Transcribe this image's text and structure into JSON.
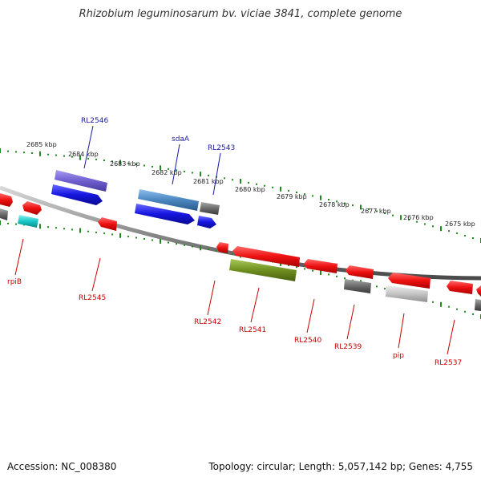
{
  "title": "Rhizobium leguminosarum bv. viciae 3841, complete genome",
  "footer": {
    "accession": "Accession: NC_008380",
    "summary": "Topology: circular; Length: 5,057,142 bp; Genes: 4,755"
  },
  "colors": {
    "backbone": "#8a8a8a",
    "ticks": "#1f8a1f",
    "cds_red": "#ee1111",
    "cds_blue": "#1515e0",
    "purple": "#6f5fd0",
    "steel": "#4a86c0",
    "gray": "#6a6a6a",
    "light_gray": "#c4c4c4",
    "cyan": "#19c8c8",
    "olive": "#6f8f1f",
    "label_blue": "#1a1aa6",
    "label_red": "#cc0000"
  },
  "scale_ticks": [
    {
      "label": "2685 kbp"
    },
    {
      "label": "2684 kbp"
    },
    {
      "label": "2683 kbp"
    },
    {
      "label": "2682 kbp"
    },
    {
      "label": "2681 kbp"
    },
    {
      "label": "2680 kbp"
    },
    {
      "label": "2679 kbp"
    },
    {
      "label": "2678 kbp"
    },
    {
      "label": "2677 kbp"
    },
    {
      "label": "2676 kbp"
    },
    {
      "label": "2675 kbp"
    }
  ],
  "gene_labels_top": [
    {
      "name": "RL2546"
    },
    {
      "name": "sdaA"
    },
    {
      "name": "RL2543"
    }
  ],
  "gene_labels_bottom": [
    {
      "name": "rpiB"
    },
    {
      "name": "RL2545"
    },
    {
      "name": "RL2542"
    },
    {
      "name": "RL2541"
    },
    {
      "name": "RL2540"
    },
    {
      "name": "RL2539"
    },
    {
      "name": "pip"
    },
    {
      "name": "RL2537"
    }
  ]
}
